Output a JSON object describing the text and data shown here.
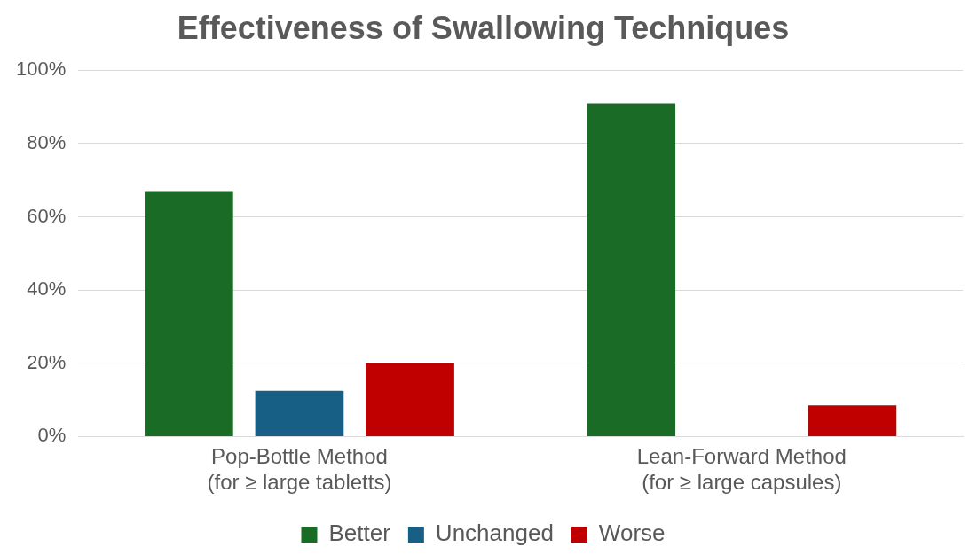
{
  "chart_data": {
    "type": "bar",
    "title": "Effectiveness of Swallowing Techniques",
    "categories": [
      "Pop-Bottle Method\n(for ≥ large tabletts)",
      "Lean-Forward Method\n(for ≥ large capsules)"
    ],
    "series": [
      {
        "name": "Better",
        "color": "#1a6b26",
        "values": [
          67,
          91
        ]
      },
      {
        "name": "Unchanged",
        "color": "#185f85",
        "values": [
          12.5,
          0
        ]
      },
      {
        "name": "Worse",
        "color": "#c00000",
        "values": [
          20,
          8.5
        ]
      }
    ],
    "ylim": [
      0,
      100
    ],
    "yticks": [
      {
        "value": 0,
        "label": "0%"
      },
      {
        "value": 20,
        "label": "20%"
      },
      {
        "value": 40,
        "label": "40%"
      },
      {
        "value": 60,
        "label": "60%"
      },
      {
        "value": 80,
        "label": "80%"
      },
      {
        "value": 100,
        "label": "100%"
      }
    ],
    "grid": "y",
    "legend": "bottom"
  }
}
